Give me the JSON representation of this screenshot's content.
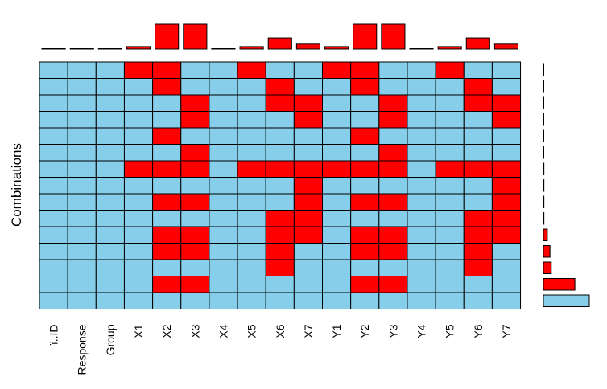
{
  "chart_data": {
    "type": "heatmap",
    "title": "",
    "ylabel": "Combinations",
    "columns": [
      "ï..ID",
      "Response",
      "Group",
      "X1",
      "X2",
      "X3",
      "X4",
      "X5",
      "X6",
      "X7",
      "Y1",
      "Y2",
      "Y3",
      "Y4",
      "Y5",
      "Y6",
      "Y7"
    ],
    "column_missing_proportion": [
      0.0,
      0.0,
      0.0,
      0.02,
      0.2,
      0.2,
      0.0,
      0.02,
      0.09,
      0.04,
      0.02,
      0.2,
      0.2,
      0.0,
      0.02,
      0.09,
      0.04
    ],
    "combination_proportion": [
      0.002,
      0.002,
      0.002,
      0.002,
      0.002,
      0.002,
      0.004,
      0.004,
      0.004,
      0.004,
      0.03,
      0.05,
      0.06,
      0.24,
      0.35
    ],
    "combinations_missing_pattern": [
      [
        0,
        0,
        0,
        1,
        1,
        0,
        0,
        1,
        0,
        0,
        1,
        1,
        0,
        0,
        1,
        0,
        0
      ],
      [
        0,
        0,
        0,
        0,
        1,
        0,
        0,
        0,
        1,
        0,
        0,
        1,
        0,
        0,
        0,
        1,
        0
      ],
      [
        0,
        0,
        0,
        0,
        0,
        1,
        0,
        0,
        1,
        1,
        0,
        0,
        1,
        0,
        0,
        1,
        1
      ],
      [
        0,
        0,
        0,
        0,
        0,
        1,
        0,
        0,
        0,
        1,
        0,
        0,
        1,
        0,
        0,
        0,
        1
      ],
      [
        0,
        0,
        0,
        0,
        1,
        0,
        0,
        0,
        0,
        0,
        0,
        1,
        0,
        0,
        0,
        0,
        0
      ],
      [
        0,
        0,
        0,
        0,
        0,
        1,
        0,
        0,
        0,
        0,
        0,
        0,
        1,
        0,
        0,
        0,
        0
      ],
      [
        0,
        0,
        0,
        1,
        1,
        1,
        0,
        1,
        1,
        1,
        1,
        1,
        1,
        0,
        1,
        1,
        1
      ],
      [
        0,
        0,
        0,
        0,
        0,
        0,
        0,
        0,
        0,
        1,
        0,
        0,
        0,
        0,
        0,
        0,
        1
      ],
      [
        0,
        0,
        0,
        0,
        1,
        1,
        0,
        0,
        0,
        1,
        0,
        1,
        1,
        0,
        0,
        0,
        1
      ],
      [
        0,
        0,
        0,
        0,
        0,
        0,
        0,
        0,
        1,
        1,
        0,
        0,
        0,
        0,
        0,
        1,
        1
      ],
      [
        0,
        0,
        0,
        0,
        1,
        1,
        0,
        0,
        1,
        1,
        0,
        1,
        1,
        0,
        0,
        1,
        1
      ],
      [
        0,
        0,
        0,
        0,
        1,
        1,
        0,
        0,
        1,
        0,
        0,
        1,
        1,
        0,
        0,
        1,
        0
      ],
      [
        0,
        0,
        0,
        0,
        0,
        0,
        0,
        0,
        1,
        0,
        0,
        0,
        0,
        0,
        0,
        1,
        0
      ],
      [
        0,
        0,
        0,
        0,
        1,
        1,
        0,
        0,
        0,
        0,
        0,
        1,
        1,
        0,
        0,
        0,
        0
      ],
      [
        0,
        0,
        0,
        0,
        0,
        0,
        0,
        0,
        0,
        0,
        0,
        0,
        0,
        0,
        0,
        0,
        0
      ]
    ],
    "colors": {
      "missing": "#ff0000",
      "observed": "#87ceeb",
      "border": "#000000"
    }
  }
}
